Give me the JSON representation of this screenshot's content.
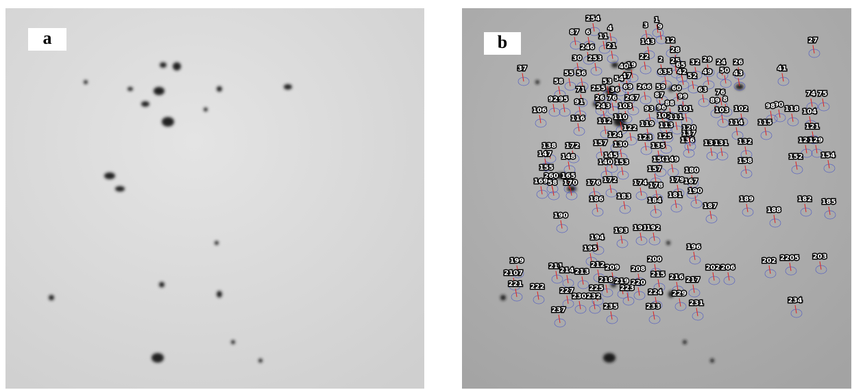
{
  "panels": [
    {
      "label": "a"
    },
    {
      "label": "b",
      "spots": [
        "254",
        "1",
        "3",
        "9",
        "4",
        "87",
        "6",
        "11",
        "12",
        "27",
        "21",
        "143",
        "28",
        "246",
        "19",
        "30",
        "253",
        "22",
        "32",
        "29",
        "24",
        "26",
        "40",
        "37",
        "41",
        "2",
        "25",
        "65",
        "50",
        "49",
        "43",
        "52",
        "635",
        "42",
        "47",
        "54",
        "55",
        "56",
        "53",
        "58",
        "71",
        "255",
        "36",
        "69",
        "266",
        "59",
        "60",
        "63",
        "76",
        "87",
        "99",
        "26",
        "76",
        "267",
        "89",
        "8",
        "74",
        "75",
        "92",
        "95",
        "91",
        "243",
        "103",
        "93",
        "96",
        "88",
        "101",
        "103",
        "102",
        "90",
        "98",
        "118",
        "104",
        "106",
        "101",
        "111",
        "110",
        "116",
        "112",
        "119",
        "113",
        "114",
        "115",
        "121",
        "120",
        "122",
        "124",
        "123",
        "125",
        "136",
        "137",
        "130",
        "135",
        "133",
        "131",
        "132",
        "127",
        "129",
        "138",
        "172",
        "147",
        "157",
        "148",
        "145",
        "150",
        "149",
        "153",
        "140",
        "152",
        "154",
        "158",
        "155",
        "157",
        "180",
        "260",
        "165",
        "172",
        "176",
        "174",
        "178",
        "179",
        "167",
        "169",
        "58",
        "170",
        "190",
        "181",
        "183",
        "186",
        "184",
        "187",
        "189",
        "182",
        "185",
        "188",
        "190",
        "193",
        "191",
        "192",
        "194",
        "196",
        "195",
        "199",
        "200",
        "212",
        "211",
        "209",
        "208",
        "202",
        "2205",
        "203",
        "206",
        "202",
        "2107",
        "214",
        "213",
        "215",
        "216",
        "217",
        "218",
        "219",
        "220",
        "221",
        "222",
        "227",
        "225",
        "223",
        "224",
        "229",
        "230",
        "232",
        "231",
        "234",
        "235",
        "233",
        "237"
      ]
    }
  ]
}
